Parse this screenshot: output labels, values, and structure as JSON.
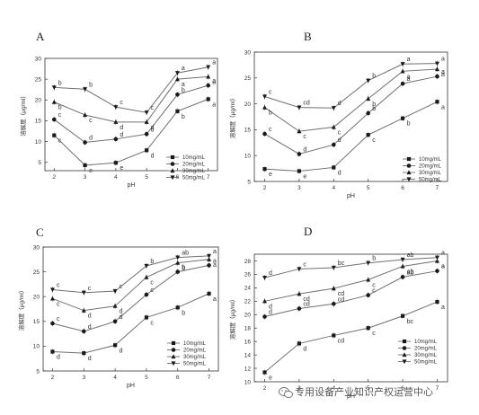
{
  "chart_data": [
    {
      "type": "line",
      "panel_label": "A",
      "xlabel": "pH",
      "ylabel": "溶解度（μg/ml）",
      "x": [
        2,
        3,
        4,
        5,
        6,
        7
      ],
      "xlim": [
        1.7,
        7.3
      ],
      "ylim": [
        3,
        30
      ],
      "yticks": [
        5,
        10,
        15,
        20,
        25,
        30
      ],
      "grid": false,
      "legend": "right-middle",
      "series": [
        {
          "name": "10mg/mL",
          "marker": "square",
          "values": [
            11.5,
            4.3,
            4.9,
            7.9,
            17.3,
            20.2
          ],
          "letters": [
            "c",
            "e",
            "e",
            "d",
            "b",
            "a"
          ]
        },
        {
          "name": "20mg/mL",
          "marker": "circle",
          "values": [
            15.3,
            9.8,
            10.6,
            11.8,
            21.3,
            23.5
          ],
          "letters": [
            "c",
            "d",
            "d",
            "d",
            "b",
            "a"
          ]
        },
        {
          "name": "30mg/mL",
          "marker": "triangle-up",
          "values": [
            19.5,
            16.4,
            14.7,
            14.7,
            25.0,
            25.6
          ],
          "letters": [
            "b",
            "c",
            "d",
            "d",
            "a",
            "a"
          ]
        },
        {
          "name": "50mg/mL",
          "marker": "triangle-down",
          "values": [
            23.0,
            22.6,
            18.3,
            17.0,
            26.5,
            27.9
          ],
          "letters": [
            "b",
            "b",
            "c",
            "c",
            "a",
            "a"
          ]
        }
      ]
    },
    {
      "type": "line",
      "panel_label": "B",
      "xlabel": "pH",
      "ylabel": "溶解度（μg/ml）",
      "x": [
        2,
        3,
        4,
        5,
        6,
        7
      ],
      "xlim": [
        1.7,
        7.3
      ],
      "ylim": [
        5,
        30
      ],
      "yticks": [
        5,
        10,
        15,
        20,
        25,
        30
      ],
      "grid": false,
      "legend": "right-bottom",
      "series": [
        {
          "name": "10mg/mL",
          "marker": "square",
          "values": [
            7.4,
            7.0,
            7.7,
            14.0,
            17.2,
            20.4
          ],
          "letters": [
            "e",
            "e",
            "d",
            "c",
            "b",
            "a"
          ]
        },
        {
          "name": "20mg/mL",
          "marker": "circle",
          "values": [
            14.2,
            10.3,
            12.1,
            18.2,
            23.9,
            25.3
          ],
          "letters": [
            "c",
            "d",
            "d",
            "b",
            "a",
            "a"
          ]
        },
        {
          "name": "30mg/mL",
          "marker": "triangle-up",
          "values": [
            19.3,
            14.7,
            15.5,
            21.0,
            26.3,
            26.7
          ],
          "letters": [
            "b",
            "c",
            "c",
            "b",
            "a",
            "a"
          ]
        },
        {
          "name": "50mg/mL",
          "marker": "triangle-down",
          "values": [
            21.4,
            19.3,
            19.2,
            24.5,
            27.7,
            27.8
          ],
          "letters": [
            "c",
            "cd",
            "d",
            "b",
            "a",
            "a"
          ]
        }
      ]
    },
    {
      "type": "line",
      "panel_label": "C",
      "xlabel": "pH",
      "ylabel": "溶解度（μg/ml）",
      "x": [
        2,
        3,
        4,
        5,
        6,
        7
      ],
      "xlim": [
        1.7,
        7.3
      ],
      "ylim": [
        5,
        30
      ],
      "yticks": [
        5,
        10,
        15,
        20,
        25,
        30
      ],
      "grid": false,
      "legend": "right-bottom",
      "series": [
        {
          "name": "10mg/mL",
          "marker": "square",
          "values": [
            8.9,
            8.6,
            10.2,
            15.8,
            17.8,
            20.6
          ],
          "letters": [
            "d",
            "d",
            "d",
            "c",
            "b",
            "a"
          ]
        },
        {
          "name": "20mg/mL",
          "marker": "circle",
          "values": [
            14.6,
            13.0,
            15.0,
            20.4,
            25.0,
            26.3
          ],
          "letters": [
            "c",
            "d",
            "d",
            "c",
            "b",
            "a"
          ]
        },
        {
          "name": "30mg/mL",
          "marker": "triangle-up",
          "values": [
            19.6,
            17.2,
            18.1,
            23.9,
            26.8,
            27.5
          ],
          "letters": [
            "c",
            "d",
            "d",
            "c",
            "b",
            "a"
          ]
        },
        {
          "name": "50mg/mL",
          "marker": "triangle-down",
          "values": [
            21.4,
            20.8,
            21.1,
            26.2,
            27.9,
            28.2
          ],
          "letters": [
            "c",
            "c",
            "c",
            "b",
            "ab",
            "a"
          ]
        }
      ]
    },
    {
      "type": "line",
      "panel_label": "D",
      "xlabel": "pH",
      "ylabel": "溶解度（μg/ml）",
      "x": [
        2,
        3,
        4,
        5,
        6,
        7
      ],
      "xlim": [
        1.7,
        7.3
      ],
      "ylim": [
        10,
        29
      ],
      "yticks": [
        10,
        12,
        14,
        16,
        18,
        20,
        22,
        24,
        26,
        28
      ],
      "grid": false,
      "legend": "right-bottom",
      "series": [
        {
          "name": "10mg/mL",
          "marker": "square",
          "values": [
            11.4,
            15.7,
            16.9,
            18.0,
            19.8,
            21.9
          ],
          "letters": [
            "e",
            "d",
            "cd",
            "c",
            "bc",
            "a"
          ]
        },
        {
          "name": "20mg/mL",
          "marker": "circle",
          "values": [
            19.7,
            20.9,
            21.6,
            22.9,
            25.6,
            26.5
          ],
          "letters": [
            "d",
            "cd",
            "cd",
            "c",
            "ab",
            "a"
          ]
        },
        {
          "name": "30mg/mL",
          "marker": "triangle-up",
          "values": [
            22.0,
            23.1,
            23.9,
            25.2,
            27.2,
            28.0
          ],
          "letters": [
            "d",
            "cd",
            "cd",
            "c",
            "ab",
            "a"
          ]
        },
        {
          "name": "50mg/mL",
          "marker": "triangle-down",
          "values": [
            25.5,
            26.8,
            27.0,
            27.7,
            28.2,
            28.5
          ],
          "letters": [
            "d",
            "c",
            "bc",
            "b",
            "ab",
            "a"
          ]
        }
      ]
    }
  ],
  "watermark": {
    "text": "专用设备产业知识产权运营中心",
    "icon": "wechat-icon"
  },
  "colors": {
    "line": "#707070",
    "marker": "#1a1a1a",
    "axis": "#333333"
  }
}
